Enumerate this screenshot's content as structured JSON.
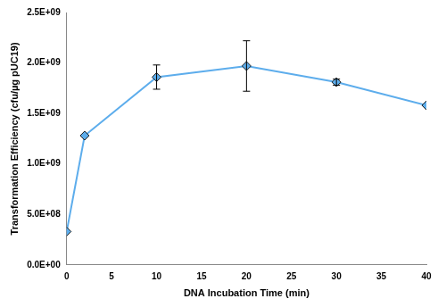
{
  "chart_data": {
    "type": "line",
    "x_label": "DNA Incubation Time (min)",
    "y_label": "Transformation Efficiency (cfu/µg pUC19)",
    "x": [
      0,
      2,
      10,
      20,
      30,
      40
    ],
    "values": [
      330000000,
      1280000000,
      1860000000,
      1970000000,
      1810000000,
      1580000000
    ],
    "errors": [
      0,
      0,
      120000000,
      250000000,
      30000000,
      0
    ],
    "color": "#5dadec",
    "marker": "diamond",
    "xlim": [
      0,
      40
    ],
    "xticks": [
      0,
      5,
      10,
      15,
      20,
      25,
      30,
      35,
      40
    ],
    "ylim": [
      0,
      2500000000
    ],
    "yticks": [
      {
        "value": 0,
        "label": "0.0E+00"
      },
      {
        "value": 500000000,
        "label": "5.0E+08"
      },
      {
        "value": 1000000000,
        "label": "1.0E+09"
      },
      {
        "value": 1500000000,
        "label": "1.5E+09"
      },
      {
        "value": 2000000000,
        "label": "2.0E+09"
      },
      {
        "value": 2500000000,
        "label": "2.5E+09"
      }
    ],
    "grid": false
  }
}
